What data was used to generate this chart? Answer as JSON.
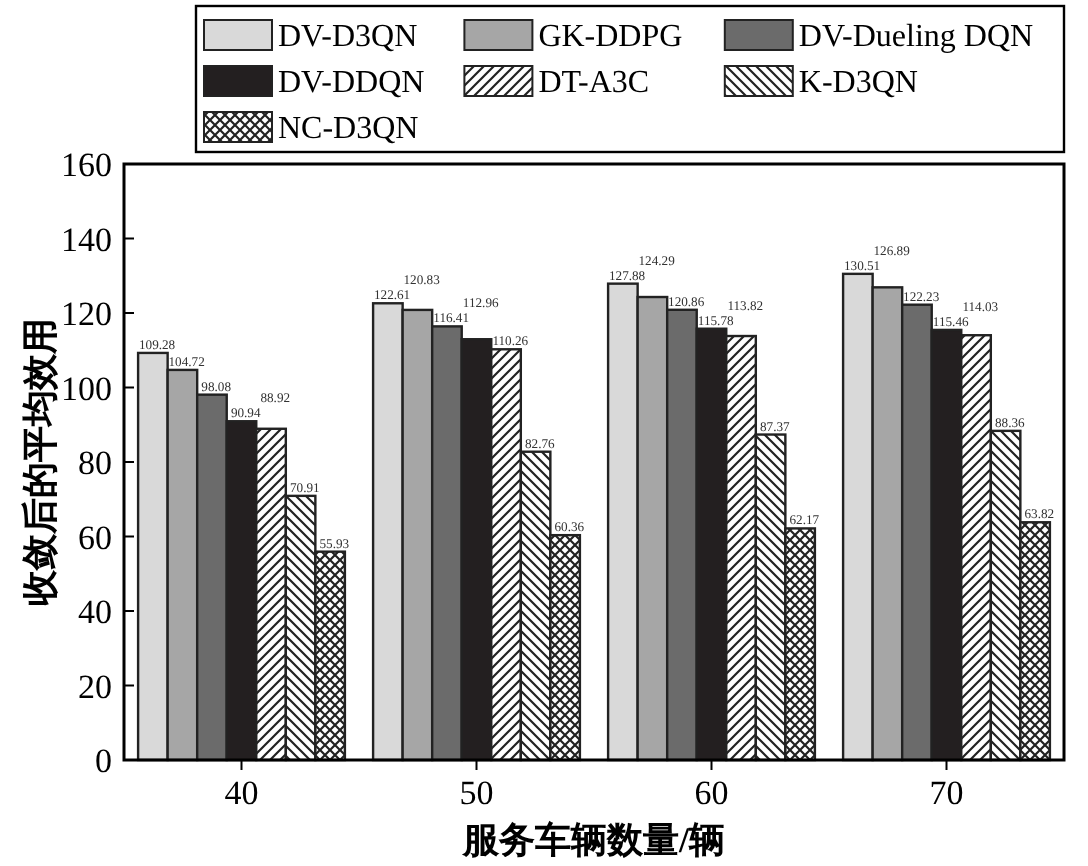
{
  "chart_data": {
    "type": "bar",
    "xlabel": "服务车辆数量/辆",
    "ylabel": "收敛后的平均效用",
    "categories": [
      "40",
      "50",
      "60",
      "70"
    ],
    "ylim": [
      0,
      160
    ],
    "yticks": [
      0,
      20,
      40,
      60,
      80,
      100,
      120,
      140,
      160
    ],
    "legend": "top",
    "data_labels": true,
    "grid": false,
    "series": [
      {
        "name": "DV-D3QN",
        "color": "#d9d9d9",
        "values": [
          109.28,
          122.61,
          127.88,
          130.51
        ]
      },
      {
        "name": "GK-DDPG",
        "color": "#a6a6a6",
        "values": [
          104.72,
          120.83,
          124.29,
          126.89
        ]
      },
      {
        "name": "DV-Dueling DQN",
        "color": "#6b6b6b",
        "values": [
          98.08,
          116.41,
          120.86,
          122.23
        ]
      },
      {
        "name": "DV-DDQN",
        "color": "#231f20",
        "values": [
          90.94,
          112.96,
          115.78,
          115.46
        ]
      },
      {
        "name": "DT-A3C",
        "color": "#222222",
        "values": [
          88.92,
          110.26,
          113.82,
          114.03
        ]
      },
      {
        "name": "K-D3QN",
        "color": "#222222",
        "values": [
          70.91,
          82.76,
          87.37,
          88.36
        ]
      },
      {
        "name": "NC-D3QN",
        "color": "#222222",
        "values": [
          55.93,
          60.36,
          62.17,
          63.82
        ]
      }
    ]
  }
}
